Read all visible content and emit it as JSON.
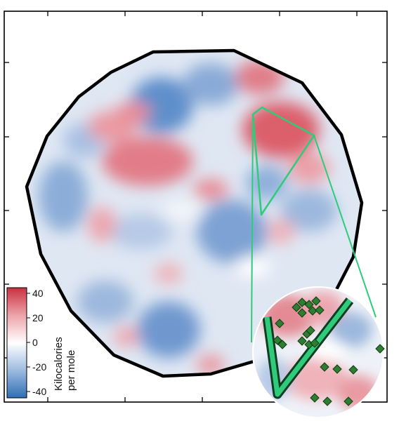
{
  "colorbar": {
    "title_line1": "Kilocalories",
    "title_line2": "per mole",
    "ticks": [
      "40",
      "20",
      "0",
      "-20",
      "-40"
    ],
    "tick_values": [
      40,
      20,
      0,
      -20,
      -40
    ],
    "range": [
      -40,
      40
    ],
    "colors": {
      "high": "#c8313f",
      "mid": "#ffffff",
      "low": "#2f6fb3"
    }
  },
  "colors": {
    "frame": "#000000",
    "outline": "#000000",
    "highlight": "#2ecc7a",
    "marker": "#2e7d32",
    "marker_stroke": "#0b3d10"
  },
  "features": {
    "frame": "plot-frame",
    "outline": "domain-outline",
    "highlight": "green-triangle-highlight",
    "inset": "zoom-inset-circle"
  }
}
